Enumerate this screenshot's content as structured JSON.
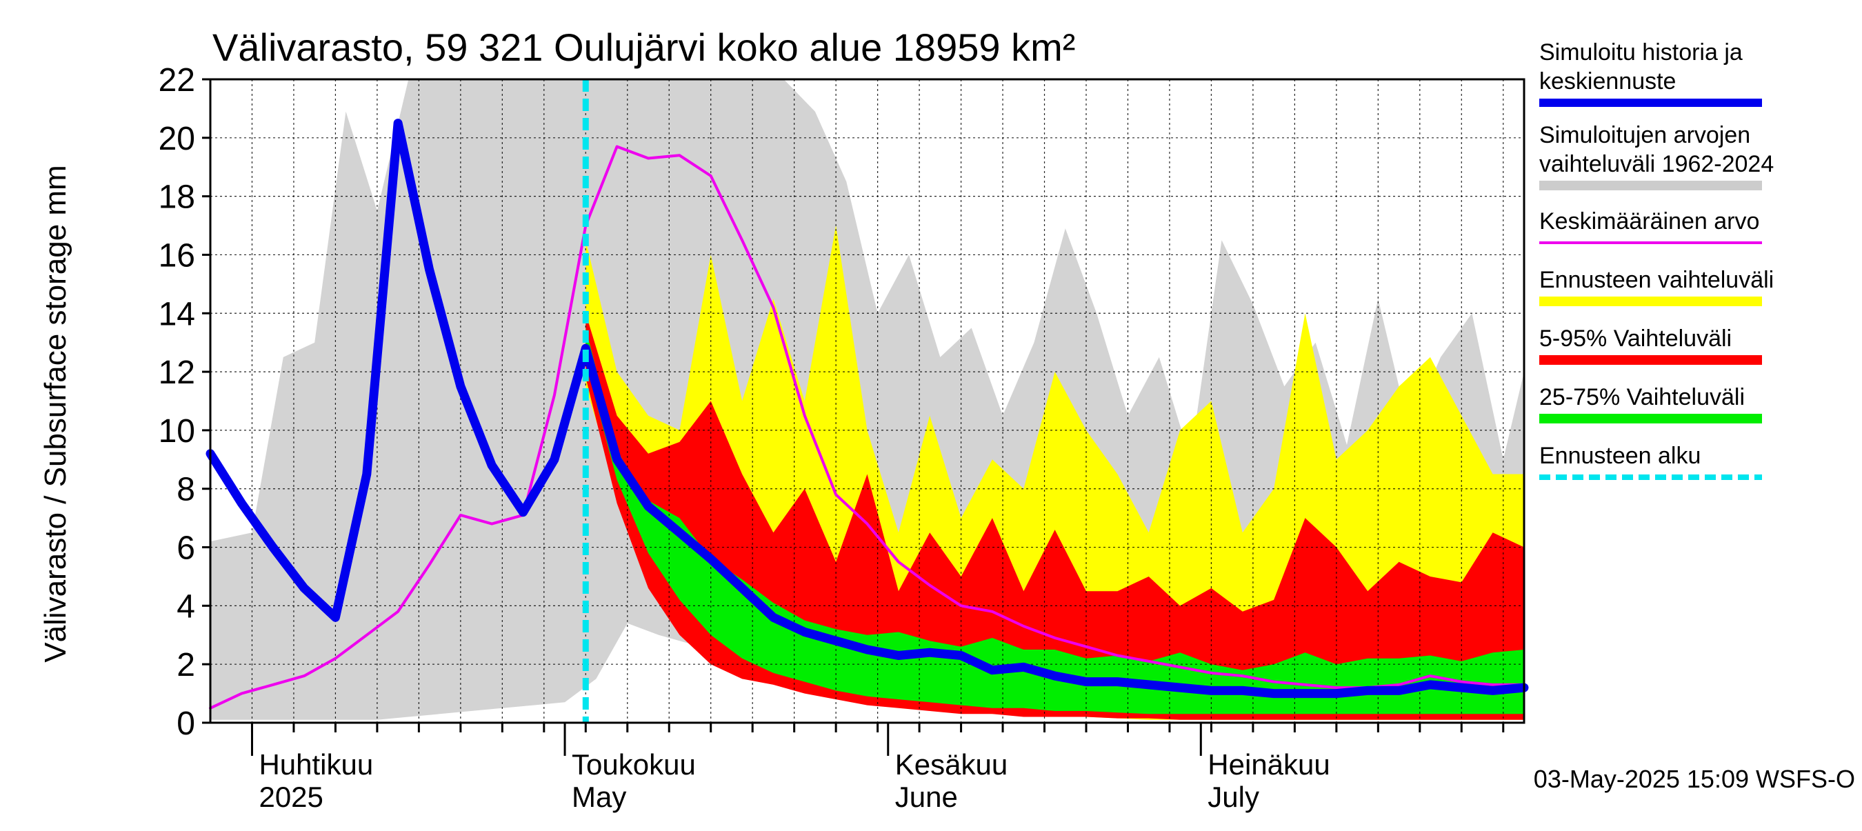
{
  "chart_data": {
    "type": "area",
    "title": "Välivarasto, 59 321 Oulujärvi koko alue 18959 km²",
    "ylabel": "Välivarasto / Subsurface storage  mm",
    "xlabel": "",
    "ylim": [
      0,
      22
    ],
    "xlim": [
      "2025-03-28",
      "2025-08-01"
    ],
    "grid": true,
    "legend_placement": "right",
    "y_ticks": [
      "0",
      "2",
      "4",
      "6",
      "8",
      "10",
      "12",
      "14",
      "16",
      "18",
      "20",
      "22"
    ],
    "month_labels": [
      {
        "date": "2025-04-01",
        "fi": "Huhtikuu",
        "en": "2025"
      },
      {
        "date": "2025-05-01",
        "fi": "Toukokuu",
        "en": "May"
      },
      {
        "date": "2025-06-01",
        "fi": "Kesäkuu",
        "en": "June"
      },
      {
        "date": "2025-07-01",
        "fi": "Heinäkuu",
        "en": "July"
      }
    ],
    "forecast_start": "2025-05-03",
    "footer": "03-May-2025 15:09 WSFS-O",
    "legend": [
      {
        "label": "Simuloitu historia ja keskiennuste",
        "color": "#0000ee",
        "style": "line"
      },
      {
        "label": "Simuloitujen arvojen vaihteluväli 1962-2024",
        "color": "#cccccc",
        "style": "band"
      },
      {
        "label": "Keskimääräinen arvo",
        "color": "#ee00ee",
        "style": "line"
      },
      {
        "label": "Ennusteen vaihteluväli",
        "color": "#ffff00",
        "style": "band"
      },
      {
        "label": "5-95% Vaihteluväli",
        "color": "#ff0000",
        "style": "band"
      },
      {
        "label": "25-75% Vaihteluväli",
        "color": "#00ee00",
        "style": "band"
      },
      {
        "label": "Ennusteen alku",
        "color": "#00e5ee",
        "style": "dashed"
      }
    ],
    "series": [
      {
        "name": "Simuloitujen arvojen vaihteluväli 1962-2024",
        "kind": "band",
        "color": "#d3d3d3",
        "x": [
          "2025-03-28",
          "2025-04-01",
          "2025-04-04",
          "2025-04-07",
          "2025-04-10",
          "2025-04-13",
          "2025-04-16",
          "2025-04-19",
          "2025-04-22",
          "2025-04-25",
          "2025-04-28",
          "2025-05-01",
          "2025-05-04",
          "2025-05-07",
          "2025-05-10",
          "2025-05-13",
          "2025-05-16",
          "2025-05-19",
          "2025-05-22",
          "2025-05-25",
          "2025-05-28",
          "2025-05-31",
          "2025-06-03",
          "2025-06-06",
          "2025-06-09",
          "2025-06-12",
          "2025-06-15",
          "2025-06-18",
          "2025-06-21",
          "2025-06-24",
          "2025-06-27",
          "2025-06-30",
          "2025-07-03",
          "2025-07-06",
          "2025-07-09",
          "2025-07-12",
          "2025-07-15",
          "2025-07-18",
          "2025-07-21",
          "2025-07-24",
          "2025-07-27",
          "2025-07-30",
          "2025-08-01"
        ],
        "lower": [
          0.1,
          0.1,
          0.1,
          0.1,
          0.1,
          0.1,
          0.2,
          0.3,
          0.4,
          0.5,
          0.6,
          0.7,
          1.5,
          3.4,
          3.0,
          2.7,
          2.4,
          2.0,
          1.6,
          1.3,
          1.1,
          0.9,
          0.8,
          0.7,
          0.6,
          0.5,
          0.5,
          0.4,
          0.4,
          0.3,
          0.3,
          0.3,
          0.3,
          0.2,
          0.2,
          0.2,
          0.2,
          0.2,
          0.2,
          0.2,
          0.2,
          0.1,
          0.1
        ],
        "upper": [
          6.2,
          6.5,
          12.5,
          13.0,
          20.9,
          17.5,
          22,
          22,
          22,
          22,
          22,
          22,
          22,
          22,
          22,
          22,
          22,
          22,
          22,
          20.9,
          18.5,
          14.0,
          16.0,
          12.5,
          13.5,
          10.5,
          13.0,
          16.9,
          14.0,
          10.5,
          12.5,
          9.0,
          16.5,
          14.3,
          11.5,
          13.0,
          9.5,
          14.5,
          10.0,
          12.5,
          14.0,
          9.0,
          12.0
        ]
      },
      {
        "name": "Ennusteen vaihteluväli",
        "kind": "band",
        "color": "#ffff00",
        "x": [
          "2025-05-03",
          "2025-05-06",
          "2025-05-09",
          "2025-05-12",
          "2025-05-15",
          "2025-05-18",
          "2025-05-21",
          "2025-05-24",
          "2025-05-27",
          "2025-05-30",
          "2025-06-02",
          "2025-06-05",
          "2025-06-08",
          "2025-06-11",
          "2025-06-14",
          "2025-06-17",
          "2025-06-20",
          "2025-06-23",
          "2025-06-26",
          "2025-06-29",
          "2025-07-02",
          "2025-07-05",
          "2025-07-08",
          "2025-07-11",
          "2025-07-14",
          "2025-07-17",
          "2025-07-20",
          "2025-07-23",
          "2025-07-26",
          "2025-07-29",
          "2025-08-01"
        ],
        "lower": [
          11.5,
          8.0,
          5.0,
          3.5,
          2.4,
          2.2,
          1.6,
          1.4,
          1.0,
          0.8,
          0.6,
          0.5,
          0.4,
          0.3,
          0.3,
          0.2,
          0.2,
          0.15,
          0.1,
          0.1,
          0.1,
          0.1,
          0.1,
          0.1,
          0.1,
          0.1,
          0.1,
          0.1,
          0.1,
          0.1,
          0.1
        ],
        "upper": [
          16.5,
          12.0,
          10.5,
          10.0,
          16.0,
          11.0,
          14.5,
          11.0,
          17.0,
          10.0,
          6.5,
          10.5,
          7.0,
          9.0,
          8.0,
          12.0,
          10.0,
          8.5,
          6.5,
          10.0,
          11.0,
          6.5,
          8.0,
          14.0,
          9.0,
          10.0,
          11.5,
          12.5,
          10.5,
          8.5,
          8.5
        ]
      },
      {
        "name": "5-95% Vaihteluväli",
        "kind": "band",
        "color": "#ff0000",
        "x": [
          "2025-05-03",
          "2025-05-06",
          "2025-05-09",
          "2025-05-12",
          "2025-05-15",
          "2025-05-18",
          "2025-05-21",
          "2025-05-24",
          "2025-05-27",
          "2025-05-30",
          "2025-06-02",
          "2025-06-05",
          "2025-06-08",
          "2025-06-11",
          "2025-06-14",
          "2025-06-17",
          "2025-06-20",
          "2025-06-23",
          "2025-06-26",
          "2025-06-29",
          "2025-07-02",
          "2025-07-05",
          "2025-07-08",
          "2025-07-11",
          "2025-07-14",
          "2025-07-17",
          "2025-07-20",
          "2025-07-23",
          "2025-07-26",
          "2025-07-29",
          "2025-08-01"
        ],
        "lower": [
          11.8,
          7.5,
          4.6,
          3.0,
          2.0,
          1.5,
          1.3,
          1.0,
          0.8,
          0.6,
          0.5,
          0.4,
          0.3,
          0.3,
          0.2,
          0.2,
          0.2,
          0.15,
          0.15,
          0.1,
          0.1,
          0.1,
          0.1,
          0.1,
          0.1,
          0.1,
          0.1,
          0.1,
          0.1,
          0.1,
          0.1
        ],
        "upper": [
          14.0,
          10.5,
          9.2,
          9.6,
          11.0,
          8.5,
          6.5,
          8.0,
          5.5,
          8.5,
          4.5,
          6.5,
          5.0,
          7.0,
          4.5,
          6.6,
          4.5,
          4.5,
          5.0,
          4.0,
          4.6,
          3.8,
          4.2,
          7.0,
          6.0,
          4.5,
          5.5,
          5.0,
          4.8,
          6.5,
          6.0
        ]
      },
      {
        "name": "25-75% Vaihteluväli",
        "kind": "band",
        "color": "#00ee00",
        "x": [
          "2025-05-03",
          "2025-05-06",
          "2025-05-09",
          "2025-05-12",
          "2025-05-15",
          "2025-05-18",
          "2025-05-21",
          "2025-05-24",
          "2025-05-27",
          "2025-05-30",
          "2025-06-02",
          "2025-06-05",
          "2025-06-08",
          "2025-06-11",
          "2025-06-14",
          "2025-06-17",
          "2025-06-20",
          "2025-06-23",
          "2025-06-26",
          "2025-06-29",
          "2025-07-02",
          "2025-07-05",
          "2025-07-08",
          "2025-07-11",
          "2025-07-14",
          "2025-07-17",
          "2025-07-20",
          "2025-07-23",
          "2025-07-26",
          "2025-07-29",
          "2025-08-01"
        ],
        "lower": [
          12.3,
          8.3,
          5.8,
          4.2,
          3.0,
          2.2,
          1.7,
          1.4,
          1.1,
          0.9,
          0.8,
          0.7,
          0.6,
          0.5,
          0.5,
          0.4,
          0.4,
          0.35,
          0.3,
          0.3,
          0.3,
          0.3,
          0.3,
          0.3,
          0.3,
          0.3,
          0.3,
          0.3,
          0.3,
          0.3,
          0.3
        ],
        "upper": [
          13.5,
          9.3,
          7.6,
          7.0,
          5.6,
          4.9,
          4.1,
          3.5,
          3.2,
          3.0,
          3.1,
          2.8,
          2.6,
          2.9,
          2.5,
          2.5,
          2.2,
          2.3,
          2.1,
          2.4,
          2.0,
          1.8,
          2.0,
          2.4,
          2.0,
          2.2,
          2.2,
          2.3,
          2.1,
          2.4,
          2.5
        ]
      },
      {
        "name": "Keskimääräinen arvo",
        "kind": "line",
        "color": "#ee00ee",
        "x": [
          "2025-03-28",
          "2025-03-31",
          "2025-04-03",
          "2025-04-06",
          "2025-04-09",
          "2025-04-12",
          "2025-04-15",
          "2025-04-18",
          "2025-04-21",
          "2025-04-24",
          "2025-04-27",
          "2025-04-30",
          "2025-05-03",
          "2025-05-06",
          "2025-05-09",
          "2025-05-12",
          "2025-05-15",
          "2025-05-18",
          "2025-05-21",
          "2025-05-24",
          "2025-05-27",
          "2025-05-30",
          "2025-06-02",
          "2025-06-05",
          "2025-06-08",
          "2025-06-11",
          "2025-06-14",
          "2025-06-17",
          "2025-06-20",
          "2025-06-23",
          "2025-06-26",
          "2025-06-29",
          "2025-07-02",
          "2025-07-05",
          "2025-07-08",
          "2025-07-11",
          "2025-07-14",
          "2025-07-17",
          "2025-07-20",
          "2025-07-23",
          "2025-07-26",
          "2025-07-29",
          "2025-08-01"
        ],
        "values": [
          0.5,
          1.0,
          1.3,
          1.6,
          2.2,
          3.0,
          3.8,
          5.4,
          7.1,
          6.8,
          7.1,
          11.2,
          17.0,
          19.7,
          19.3,
          19.4,
          18.7,
          16.5,
          14.2,
          10.5,
          7.8,
          6.8,
          5.5,
          4.7,
          4.0,
          3.8,
          3.3,
          2.9,
          2.6,
          2.3,
          2.1,
          1.9,
          1.7,
          1.6,
          1.4,
          1.3,
          1.2,
          1.2,
          1.3,
          1.6,
          1.4,
          1.3,
          1.3
        ]
      },
      {
        "name": "Simuloitu historia ja keskiennuste",
        "kind": "line",
        "color": "#0000ee",
        "x": [
          "2025-03-28",
          "2025-03-31",
          "2025-04-03",
          "2025-04-06",
          "2025-04-09",
          "2025-04-12",
          "2025-04-15",
          "2025-04-18",
          "2025-04-21",
          "2025-04-24",
          "2025-04-27",
          "2025-04-30",
          "2025-05-03",
          "2025-05-06",
          "2025-05-09",
          "2025-05-12",
          "2025-05-15",
          "2025-05-18",
          "2025-05-21",
          "2025-05-24",
          "2025-05-27",
          "2025-05-30",
          "2025-06-02",
          "2025-06-05",
          "2025-06-08",
          "2025-06-11",
          "2025-06-14",
          "2025-06-17",
          "2025-06-20",
          "2025-06-23",
          "2025-06-26",
          "2025-06-29",
          "2025-07-02",
          "2025-07-05",
          "2025-07-08",
          "2025-07-11",
          "2025-07-14",
          "2025-07-17",
          "2025-07-20",
          "2025-07-23",
          "2025-07-26",
          "2025-07-29",
          "2025-08-01"
        ],
        "values": [
          9.2,
          7.5,
          6.0,
          4.6,
          3.6,
          8.5,
          20.5,
          15.5,
          11.5,
          8.8,
          7.2,
          9.0,
          12.8,
          9.0,
          7.4,
          6.5,
          5.6,
          4.6,
          3.6,
          3.1,
          2.8,
          2.5,
          2.3,
          2.4,
          2.3,
          1.8,
          1.9,
          1.6,
          1.4,
          1.4,
          1.3,
          1.2,
          1.1,
          1.1,
          1.0,
          1.0,
          1.0,
          1.1,
          1.1,
          1.3,
          1.2,
          1.1,
          1.2
        ]
      }
    ]
  }
}
